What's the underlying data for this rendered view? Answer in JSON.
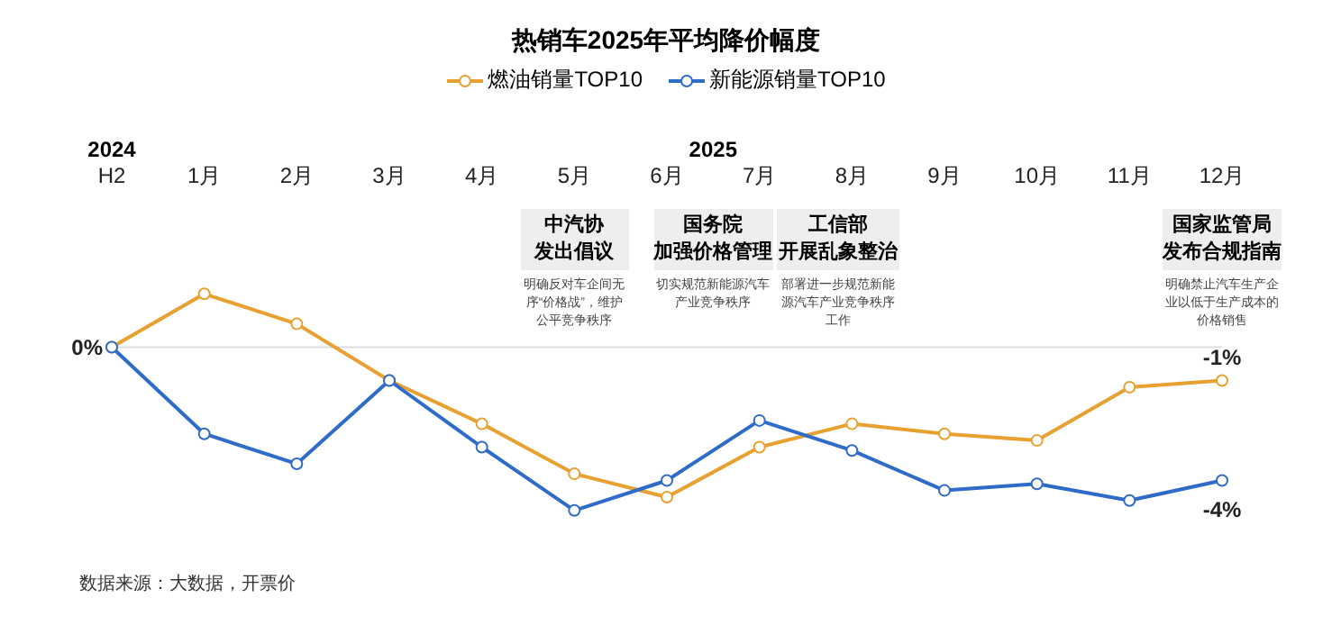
{
  "chart_data": {
    "type": "line",
    "title": "热销车2025年平均降价幅度",
    "categories": [
      "H2",
      "1月",
      "2月",
      "3月",
      "4月",
      "5月",
      "6月",
      "7月",
      "8月",
      "9月",
      "10月",
      "11月",
      "12月"
    ],
    "series": [
      {
        "name": "燃油销量TOP10",
        "color": "#e8a030",
        "values": [
          0,
          1.6,
          0.7,
          -1.0,
          -2.3,
          -3.8,
          -4.5,
          -3.0,
          -2.3,
          -2.6,
          -2.8,
          -1.2,
          -1
        ],
        "value_labels": [
          null,
          null,
          null,
          null,
          null,
          null,
          null,
          null,
          null,
          null,
          null,
          null,
          "-1%"
        ]
      },
      {
        "name": "新能源销量TOP10",
        "color": "#2f6bc8",
        "values": [
          0,
          -2.6,
          -3.5,
          -1.0,
          -3.0,
          -4.9,
          -4.0,
          -2.2,
          -3.1,
          -4.3,
          -4.1,
          -4.6,
          -4
        ],
        "value_labels": [
          null,
          null,
          null,
          null,
          null,
          null,
          null,
          null,
          null,
          null,
          null,
          null,
          "-4%"
        ]
      }
    ],
    "ref_lines": [
      {
        "axis": "y",
        "value": 0,
        "label": "0%",
        "color": "#dddddd"
      }
    ],
    "marker": "circle",
    "line_style": "solid",
    "legend": "top",
    "annotations": [
      "2024",
      "2025",
      "中汽协",
      "发出倡议",
      "明确反对车企间无序“价格战”，维护公平竞争秩序",
      "国务院",
      "加强价格管理",
      "切实规范新能源汽车产业竞争秩序",
      "工信部",
      "开展乱象整治",
      "部署进一步规范新能源汽车产业竞争秩序工作",
      "国家监管局",
      "发布合规指南",
      "明确禁止汽车生产企业以低于生产成本的价格销售",
      "数据来源：大数据，开票价"
    ]
  }
}
